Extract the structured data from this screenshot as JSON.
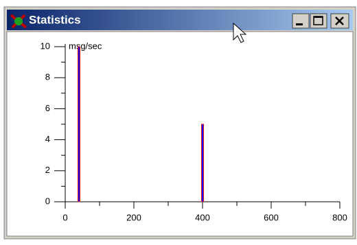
{
  "window": {
    "title": "Statistics"
  },
  "chart_data": {
    "type": "bar",
    "y_label": "msg/sec",
    "x": [
      40,
      400
    ],
    "values": [
      10,
      5
    ],
    "color": "#1010ff",
    "edge_color": "#e01010",
    "xlim": [
      0,
      800
    ],
    "xticks": [
      0,
      200,
      400,
      600,
      800
    ],
    "xminor_ticks": [
      100,
      300,
      500,
      700
    ],
    "ylim": [
      0,
      10
    ],
    "yticks": [
      0,
      2,
      4,
      6,
      8,
      10
    ],
    "yminor_ticks": [
      1,
      3,
      5,
      7,
      9
    ]
  }
}
